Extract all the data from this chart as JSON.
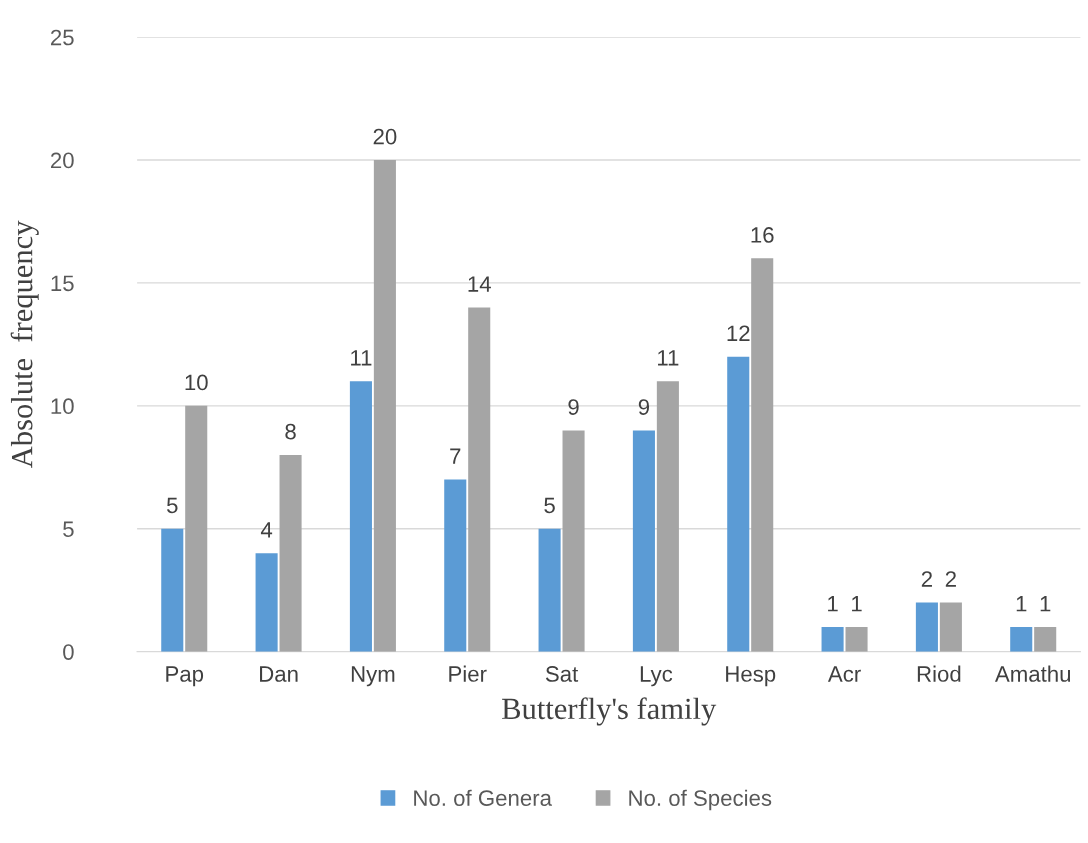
{
  "chart_data": {
    "type": "bar",
    "xlabel": "Butterfly's family",
    "ylabel": "Absolute  frequency",
    "categories": [
      "Pap",
      "Dan",
      "Nym",
      "Pier",
      "Sat",
      "Lyc",
      "Hesp",
      "Acr",
      "Riod",
      "Amathu"
    ],
    "series": [
      {
        "name": "No. of Genera",
        "color": "#5b9bd5",
        "values": [
          5,
          4,
          11,
          7,
          5,
          9,
          12,
          1,
          2,
          1
        ]
      },
      {
        "name": "No. of Species",
        "color": "#a5a5a5",
        "values": [
          10,
          8,
          20,
          14,
          9,
          11,
          16,
          1,
          2,
          1
        ]
      }
    ],
    "ylim": [
      0,
      25
    ],
    "yticks": [
      0,
      5,
      10,
      15,
      20,
      25
    ],
    "grid": "y",
    "legend": "bottom",
    "data_labels": true
  }
}
